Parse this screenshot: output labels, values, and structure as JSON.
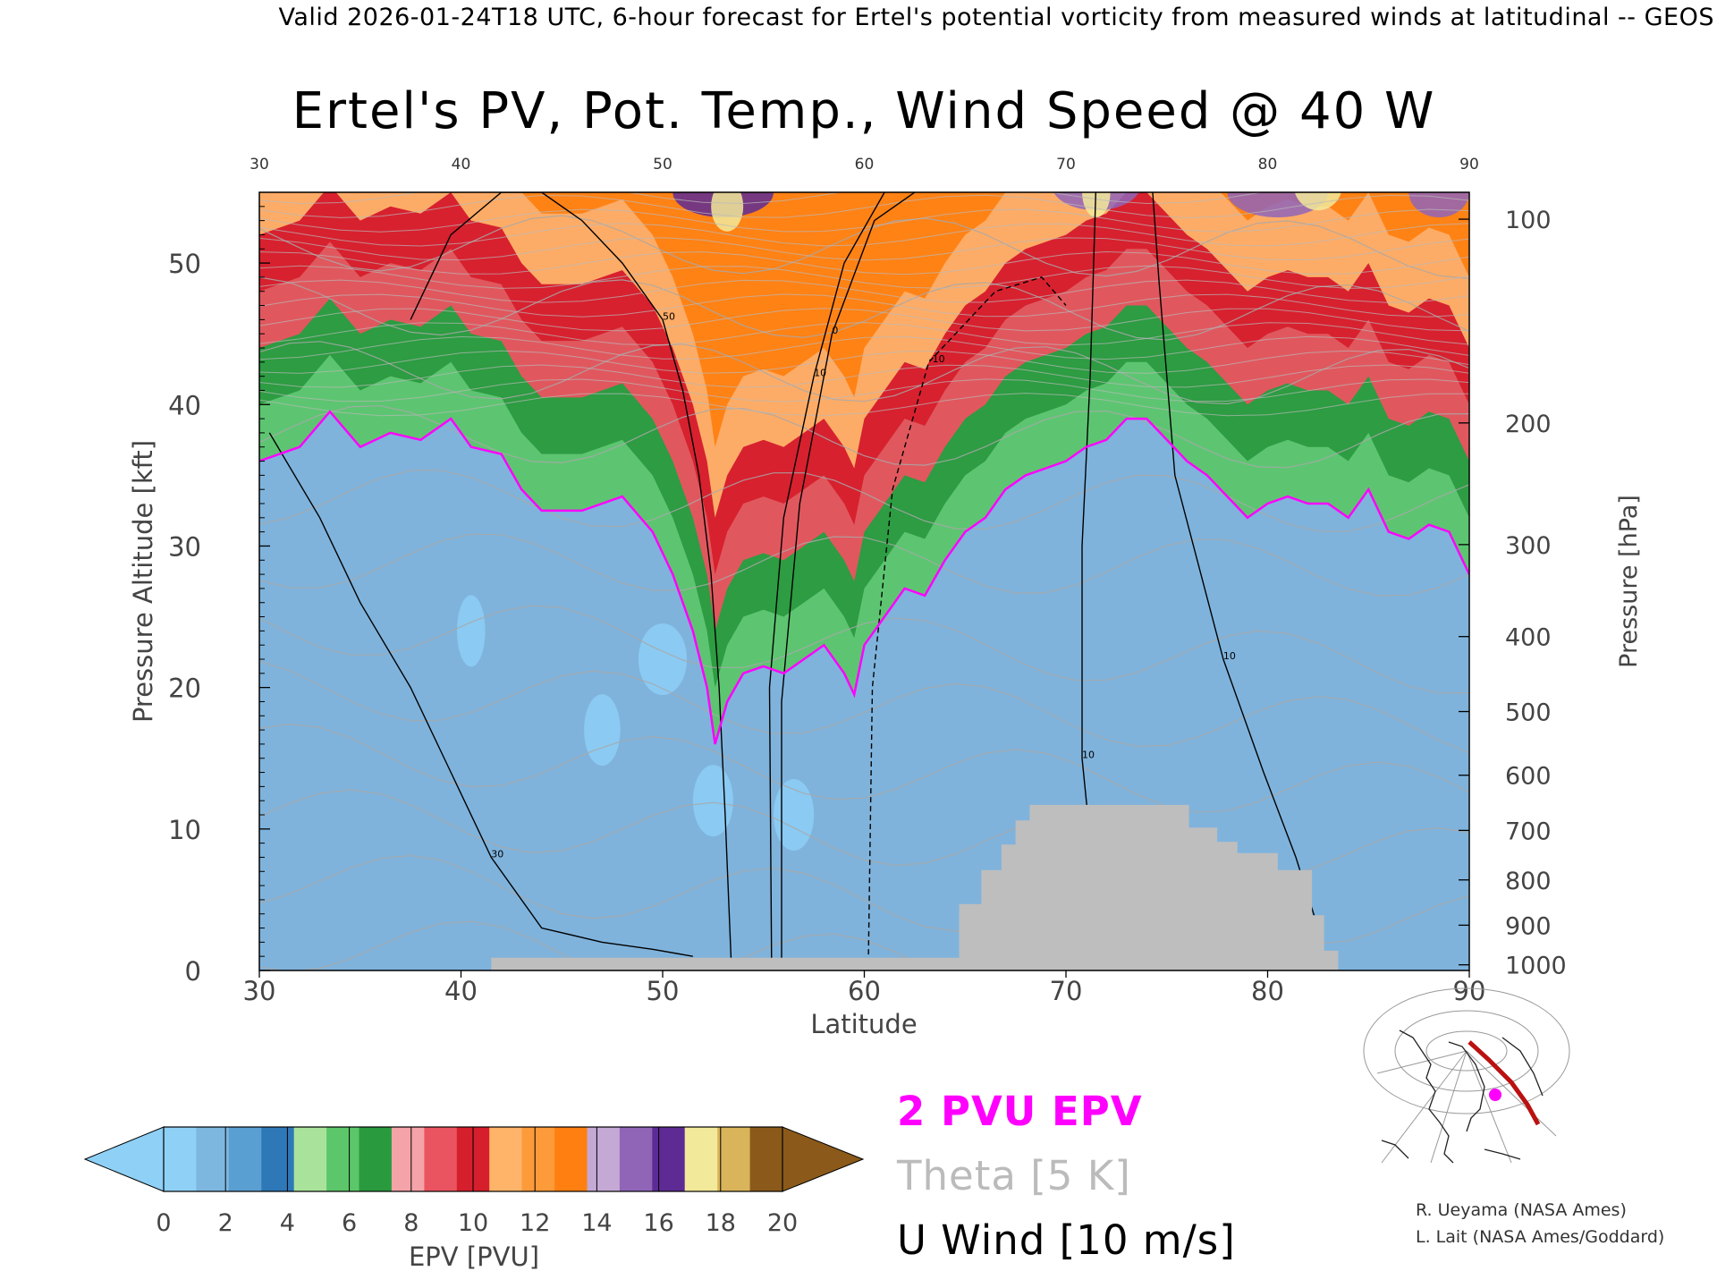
{
  "header": {
    "valid_line": "Valid 2026-01-24T18 UTC, 6-hour forecast for Ertel's potential vorticity from measured winds at latitudinal -- GEOS"
  },
  "chart_data": {
    "type": "heatmap",
    "title": "Ertel's PV, Pot. Temp., Wind Speed @ 40 W",
    "xlabel": "Latitude",
    "ylabel_left": "Pressure Altitude [kft]",
    "ylabel_right": "Pressure [hPa]",
    "xlim": [
      30,
      90
    ],
    "ylim": [
      0,
      55
    ],
    "x_ticks": [
      "30",
      "40",
      "50",
      "60",
      "70",
      "80",
      "90"
    ],
    "y_ticks": [
      "0",
      "10",
      "20",
      "30",
      "40",
      "50"
    ],
    "pressure_ticks": [
      {
        "label": "100",
        "kft": 53.1
      },
      {
        "label": "200",
        "kft": 38.7
      },
      {
        "label": "300",
        "kft": 30.1
      },
      {
        "label": "400",
        "kft": 23.6
      },
      {
        "label": "500",
        "kft": 18.3
      },
      {
        "label": "600",
        "kft": 13.8
      },
      {
        "label": "700",
        "kft": 9.9
      },
      {
        "label": "800",
        "kft": 6.4
      },
      {
        "label": "900",
        "kft": 3.2
      },
      {
        "label": "1000",
        "kft": 0.4
      }
    ],
    "tropopause_2pvu": {
      "lat": [
        30,
        32,
        33.5,
        35,
        36.5,
        38,
        39.5,
        40.5,
        42,
        43,
        44,
        46,
        48,
        49.5,
        50.5,
        51.5,
        52.2,
        52.6,
        53.2,
        54,
        55,
        56,
        57,
        58,
        59,
        59.5,
        60,
        61,
        62,
        63,
        64,
        65,
        66,
        67,
        68,
        69,
        70,
        71,
        72,
        73,
        74,
        75,
        76,
        77,
        78,
        79,
        80,
        81,
        82,
        83,
        84,
        85,
        86,
        87,
        88,
        89,
        90
      ],
      "kft": [
        36,
        37,
        39.5,
        37,
        38,
        37.5,
        39,
        37,
        36.5,
        34,
        32.5,
        32.5,
        33.5,
        31,
        28,
        24,
        20,
        16,
        19,
        21,
        21.5,
        21,
        22,
        23,
        21,
        19.5,
        23,
        25,
        27,
        26.5,
        29,
        31,
        32,
        34,
        35,
        35.5,
        36,
        37,
        37.5,
        39,
        39,
        37.5,
        36,
        35,
        33.5,
        32,
        33,
        33.5,
        33,
        33,
        32,
        34,
        31,
        30.5,
        31.5,
        31,
        28
      ]
    },
    "terrain": {
      "lat": [
        41.5,
        64.7,
        64.7,
        65.8,
        65.8,
        66.8,
        66.8,
        67.5,
        67.5,
        68.2,
        68.2,
        76.1,
        76.1,
        77.5,
        77.5,
        78.5,
        78.5,
        80.5,
        80.5,
        82.2,
        82.2,
        82.8,
        82.8,
        83.5
      ],
      "kft": [
        0.9,
        0.9,
        4.7,
        4.7,
        7.1,
        7.1,
        8.9,
        8.9,
        10.6,
        10.6,
        11.7,
        11.7,
        10.1,
        10.1,
        9.1,
        9.1,
        8.3,
        8.3,
        7.1,
        7.1,
        3.9,
        3.9,
        1.4,
        1.4
      ]
    },
    "u_wind_contours": [
      {
        "label": "50",
        "lat": [
          37.5,
          39.5,
          42,
          44,
          46,
          48,
          50,
          51,
          51.8,
          52.4,
          52.8,
          53.1,
          53.4
        ],
        "kft": [
          46,
          52,
          55,
          55,
          53,
          50,
          46,
          41,
          35,
          28,
          20,
          11,
          0.5
        ]
      },
      {
        "label": "10",
        "lat": [
          55.4,
          55.3,
          56,
          57.5,
          59,
          61,
          63
        ],
        "kft": [
          0.5,
          20,
          32,
          42,
          50,
          55,
          56
        ]
      },
      {
        "label": "0",
        "lat": [
          55.9,
          55.9,
          56.8,
          58.4,
          60.5,
          63.5,
          64.5
        ],
        "kft": [
          0.5,
          19,
          33,
          45,
          53,
          56,
          57
        ]
      },
      {
        "label": "-10",
        "lat": [
          60.2,
          60.4,
          61.4,
          63.2,
          66.5,
          68.8,
          70
        ],
        "kft": [
          0.5,
          20,
          34,
          43,
          48,
          49,
          47
        ]
      },
      {
        "label": "30",
        "lat": [
          30.5,
          33,
          35,
          37.5,
          39.5,
          41.5,
          44,
          47,
          49.5,
          51.5
        ],
        "kft": [
          38,
          32,
          26,
          20,
          14,
          8,
          3,
          2,
          1.5,
          1
        ]
      },
      {
        "label": "10",
        "lat": [
          71.5,
          71.2,
          70.8,
          70.8,
          71.5,
          72.6
        ],
        "kft": [
          56,
          42,
          30,
          15,
          5,
          1
        ]
      },
      {
        "label": "10",
        "lat": [
          74.2,
          74.6,
          75.4,
          77.8,
          79.8,
          81.4,
          82.5
        ],
        "kft": [
          57,
          49,
          35,
          22,
          14,
          8,
          3
        ]
      }
    ],
    "theta_contours_K": [
      290,
      300,
      310,
      320,
      330,
      340,
      350,
      360,
      370,
      380,
      390,
      400
    ],
    "colorbar": {
      "label": "EPV [PVU]",
      "ticks": [
        "0",
        "2",
        "4",
        "6",
        "8",
        "10",
        "12",
        "14",
        "16",
        "18",
        "20"
      ],
      "colors": [
        "#8fd0f7",
        "#7db7df",
        "#5a9fd1",
        "#2f78b8",
        "#a9e39b",
        "#5cc66a",
        "#2a9a3f",
        "#f4a3a8",
        "#ea5460",
        "#d61f2c",
        "#ffb46a",
        "#fd9a3a",
        "#ff7f11",
        "#c3a9d4",
        "#9065b8",
        "#5e2b94",
        "#f2ea9a",
        "#d9b45a",
        "#8b5a1a"
      ],
      "under_color": "#8fd0f7",
      "over_color": "#8b5a1a"
    },
    "legend": {
      "pvu_line": "2 PVU EPV",
      "theta_line": "Theta [5 K]",
      "wind_line": "U Wind [10 m/s]",
      "pvu_color": "#ff00ff",
      "theta_color": "#bbbbbb",
      "wind_color": "#000000"
    },
    "grid": false
  },
  "credits": {
    "line1": "R. Ueyama (NASA Ames)",
    "line2": "L. Lait (NASA Ames/Goddard)"
  },
  "colors": {
    "terrain": "#bebebe",
    "background": "#ffffff"
  }
}
